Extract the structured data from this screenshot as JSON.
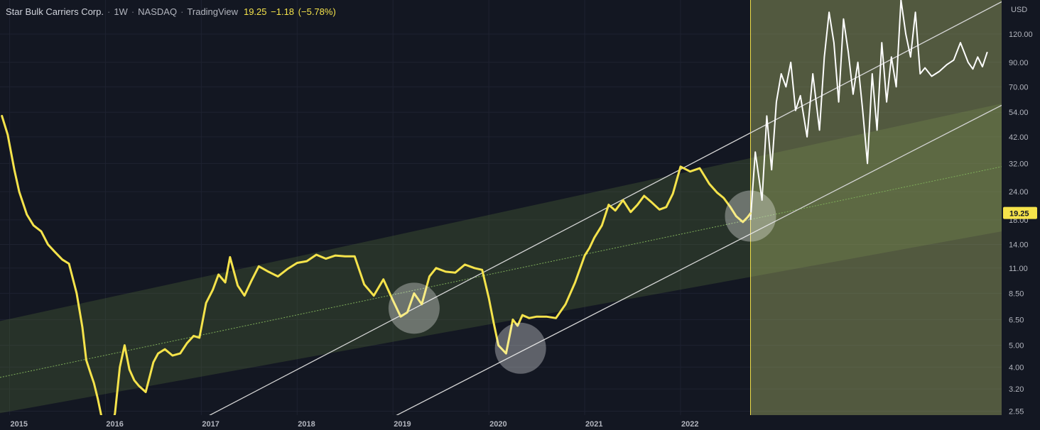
{
  "header": {
    "symbol": "Star Bulk Carriers Corp.",
    "interval": "1W",
    "exchange": "NASDAQ",
    "source": "TradingView",
    "last": "19.25",
    "change": "−1.18",
    "change_pct": "(−5.78%)"
  },
  "colors": {
    "background": "#131722",
    "price_line": "#f5e34b",
    "overlay_line": "#ffffff",
    "channel_fill": "#5f7a3c",
    "forecast_zone": "#a9b56a",
    "price_tag": "#f5e34b"
  },
  "chart_data": {
    "type": "line",
    "title": "Star Bulk Carriers Corp. · 1W · NASDAQ",
    "currency": "USD",
    "y_scale": "log",
    "ylim": [
      2.45,
      170
    ],
    "xlim": [
      2014.9,
      2025.35
    ],
    "x_ticks": [
      "2015",
      "2016",
      "2017",
      "2018",
      "2019",
      "2020",
      "2021",
      "2022"
    ],
    "y_ticks": [
      "120.00",
      "90.00",
      "70.00",
      "54.00",
      "42.00",
      "32.00",
      "24.00",
      "18.00",
      "14.00",
      "11.00",
      "8.50",
      "6.50",
      "5.00",
      "4.00",
      "3.20",
      "2.55"
    ],
    "last_price_label": "19.25",
    "grid": true,
    "series": [
      {
        "x": [
          2014.92,
          2014.98,
          2015.05,
          2015.1,
          2015.18,
          2015.25,
          2015.33,
          2015.4,
          2015.47,
          2015.55,
          2015.62,
          2015.7,
          2015.76,
          2015.8,
          2015.85,
          2015.88,
          2015.92,
          2015.96,
          2016.0,
          2016.05,
          2016.1,
          2016.15,
          2016.2,
          2016.25,
          2016.3,
          2016.35,
          2016.42,
          2016.5,
          2016.55,
          2016.62,
          2016.7,
          2016.78,
          2016.85,
          2016.92,
          2016.98,
          2017.05,
          2017.12,
          2017.18,
          2017.25,
          2017.3,
          2017.38,
          2017.45,
          2017.52,
          2017.6,
          2017.7,
          2017.8,
          2017.9,
          2018.0,
          2018.1,
          2018.2,
          2018.3,
          2018.4,
          2018.5,
          2018.6,
          2018.7,
          2018.8,
          2018.9,
          2019.0,
          2019.08,
          2019.15,
          2019.22,
          2019.3,
          2019.38,
          2019.45,
          2019.55,
          2019.65,
          2019.75,
          2019.85,
          2019.93,
          2020.0,
          2020.05,
          2020.1,
          2020.18,
          2020.25,
          2020.3,
          2020.35,
          2020.42,
          2020.5,
          2020.6,
          2020.7,
          2020.8,
          2020.9,
          2021.0,
          2021.05,
          2021.1,
          2021.18,
          2021.25,
          2021.32,
          2021.4,
          2021.48,
          2021.55,
          2021.62,
          2021.7,
          2021.78,
          2021.85,
          2021.92,
          2022.0,
          2022.1,
          2022.2,
          2022.3,
          2022.38,
          2022.45,
          2022.52,
          2022.58,
          2022.65,
          2022.7,
          2022.73
        ],
        "values": [
          52,
          43,
          30,
          24,
          19,
          17,
          16,
          14,
          13,
          12,
          11.5,
          8.5,
          6.0,
          4.3,
          3.7,
          3.4,
          2.9,
          2.4,
          2.2,
          2.0,
          2.5,
          4.0,
          5.0,
          3.9,
          3.5,
          3.3,
          3.1,
          4.2,
          4.6,
          4.8,
          4.5,
          4.6,
          5.1,
          5.5,
          5.4,
          7.7,
          8.8,
          10.3,
          9.5,
          12.3,
          9.2,
          8.3,
          9.6,
          11.2,
          10.6,
          10.1,
          10.9,
          11.6,
          11.8,
          12.6,
          12.1,
          12.5,
          12.4,
          12.4,
          9.3,
          8.3,
          9.8,
          7.9,
          6.7,
          7.0,
          8.5,
          7.6,
          10.1,
          11.0,
          10.6,
          10.5,
          11.4,
          11.0,
          10.8,
          8.1,
          6.3,
          5.0,
          4.6,
          6.5,
          6.1,
          6.8,
          6.6,
          6.7,
          6.7,
          6.6,
          7.6,
          9.5,
          12.5,
          13.5,
          15.0,
          17.0,
          21.0,
          19.8,
          22.0,
          19.5,
          21.0,
          23.0,
          21.5,
          20.0,
          20.5,
          23.5,
          31.0,
          29.5,
          30.5,
          26.0,
          23.8,
          22.5,
          20.5,
          18.7,
          17.6,
          18.5,
          19.25
        ]
      }
    ],
    "annotations": {
      "forecast_zone": {
        "x_start": 2022.73,
        "x_end": 2025.35
      },
      "upper_channel_line": {
        "x": [
          2017.05,
          2025.35
        ],
        "y": [
          2.4,
          167
        ]
      },
      "lower_channel_line": {
        "x": [
          2019.0,
          2025.35
        ],
        "y": [
          2.4,
          58
        ]
      },
      "regression_midline": {
        "x": [
          2014.9,
          2025.35
        ],
        "y": [
          3.6,
          31
        ]
      },
      "channel_band": {
        "x": [
          2014.9,
          2025.35
        ],
        "y_top": [
          6.4,
          59
        ],
        "y_bottom": [
          2.5,
          16
        ]
      },
      "highlight_circles": [
        {
          "x": 2019.22,
          "y": 7.3
        },
        {
          "x": 2020.33,
          "y": 4.85
        },
        {
          "x": 2022.73,
          "y": 18.7
        }
      ],
      "projection_path": {
        "x": [
          2022.73,
          2022.78,
          2022.85,
          2022.9,
          2022.95,
          2023.0,
          2023.05,
          2023.1,
          2023.15,
          2023.2,
          2023.25,
          2023.32,
          2023.38,
          2023.45,
          2023.5,
          2023.55,
          2023.6,
          2023.65,
          2023.7,
          2023.75,
          2023.8,
          2023.85,
          2023.9,
          2023.95,
          2024.0,
          2024.05,
          2024.1,
          2024.15,
          2024.2,
          2024.25,
          2024.3,
          2024.35,
          2024.4,
          2024.45,
          2024.5,
          2024.55,
          2024.62,
          2024.7,
          2024.78,
          2024.85,
          2024.92,
          2025.0,
          2025.05,
          2025.1,
          2025.15,
          2025.2
        ],
        "values": [
          18,
          36,
          22,
          52,
          30,
          60,
          80,
          70,
          90,
          55,
          64,
          42,
          80,
          45,
          95,
          150,
          110,
          60,
          140,
          100,
          65,
          90,
          55,
          32,
          80,
          45,
          110,
          60,
          95,
          70,
          170,
          120,
          95,
          150,
          80,
          85,
          78,
          82,
          88,
          92,
          110,
          90,
          84,
          95,
          86,
          100
        ]
      }
    }
  }
}
